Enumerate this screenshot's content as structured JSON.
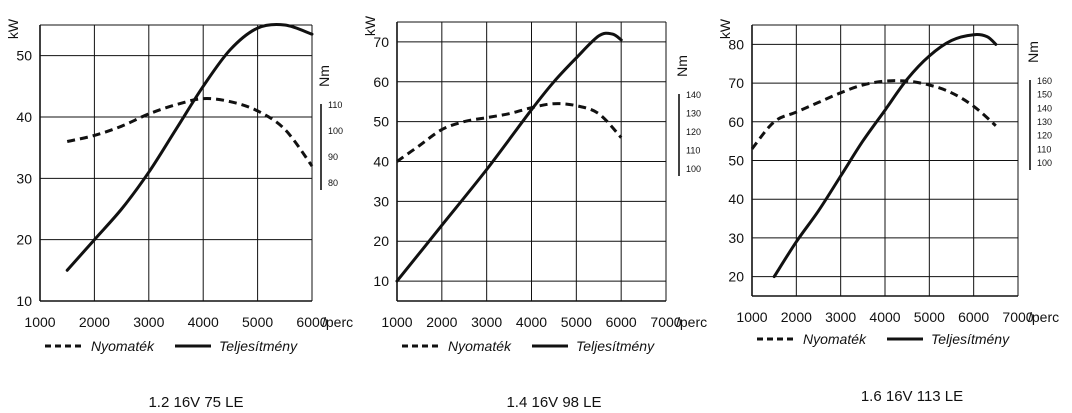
{
  "chart_data": [
    {
      "type": "line",
      "caption": "1.2 16V 75 LE",
      "x_unit": "/perc",
      "xlim": [
        1000,
        6000
      ],
      "x_ticks": [
        1000,
        2000,
        3000,
        4000,
        5000,
        6000
      ],
      "y_unit": "kW",
      "ylim": [
        10,
        55
      ],
      "y_ticks": [
        10,
        20,
        30,
        40,
        50
      ],
      "nm_unit": "Nm",
      "nm_ticks": [
        110,
        100,
        90,
        80
      ],
      "legend": [
        "Nyomaték",
        "Teljesítmény"
      ],
      "series": [
        {
          "name": "Teljesítmény",
          "axis": "kW",
          "style": "solid",
          "x": [
            1500,
            2000,
            2500,
            3000,
            3500,
            4000,
            4500,
            5000,
            5500,
            6000
          ],
          "y": [
            15,
            20,
            25,
            31,
            38,
            45,
            51,
            54.5,
            55,
            53.5
          ]
        },
        {
          "name": "Nyomaték",
          "axis": "kW",
          "style": "dashed",
          "x": [
            1500,
            2000,
            2500,
            3000,
            3500,
            4000,
            4500,
            5000,
            5500,
            6000
          ],
          "y": [
            36,
            37,
            38.5,
            40.5,
            42,
            43,
            42.5,
            41,
            38,
            32
          ]
        }
      ]
    },
    {
      "type": "line",
      "caption": "1.4 16V 98 LE",
      "x_unit": "/perc",
      "xlim": [
        1000,
        7000
      ],
      "x_ticks": [
        1000,
        2000,
        3000,
        4000,
        5000,
        6000,
        7000
      ],
      "y_unit": "kW",
      "ylim": [
        5,
        75
      ],
      "y_ticks": [
        10,
        20,
        30,
        40,
        50,
        60,
        70
      ],
      "nm_unit": "Nm",
      "nm_ticks": [
        140,
        130,
        120,
        110,
        100
      ],
      "legend": [
        "Nyomaték",
        "Teljesítmény"
      ],
      "series": [
        {
          "name": "Teljesítmény",
          "axis": "kW",
          "style": "solid",
          "x": [
            1000,
            2000,
            3000,
            4000,
            4500,
            5000,
            5500,
            5800,
            6000
          ],
          "y": [
            10,
            24,
            38,
            53,
            60,
            66,
            71.5,
            72,
            70.5
          ]
        },
        {
          "name": "Nyomaték",
          "axis": "kW",
          "style": "dashed",
          "x": [
            1000,
            1500,
            2000,
            2500,
            3000,
            3500,
            4000,
            4500,
            5000,
            5500,
            6000
          ],
          "y": [
            40,
            44,
            48,
            50,
            51,
            52,
            53.5,
            54.5,
            54,
            52,
            46
          ]
        }
      ]
    },
    {
      "type": "line",
      "caption": "1.6 16V 113 LE",
      "x_unit": "/perc",
      "xlim": [
        1000,
        7000
      ],
      "x_ticks": [
        1000,
        2000,
        3000,
        4000,
        5000,
        6000,
        7000
      ],
      "y_unit": "kW",
      "ylim": [
        15,
        85
      ],
      "y_ticks": [
        20,
        30,
        40,
        50,
        60,
        70,
        80
      ],
      "nm_unit": "Nm",
      "nm_ticks": [
        160,
        150,
        140,
        130,
        120,
        110,
        100
      ],
      "legend": [
        "Nyomaték",
        "Teljesítmény"
      ],
      "series": [
        {
          "name": "Teljesítmény",
          "axis": "kW",
          "style": "solid",
          "x": [
            1500,
            2000,
            2500,
            3000,
            3500,
            4000,
            4500,
            5000,
            5500,
            6000,
            6300,
            6500
          ],
          "y": [
            20,
            29,
            37,
            46,
            55,
            63,
            71,
            77,
            81,
            82.5,
            82,
            80
          ]
        },
        {
          "name": "Nyomaték",
          "axis": "kW",
          "style": "dashed",
          "x": [
            1000,
            1500,
            2000,
            2500,
            3000,
            3500,
            4000,
            4500,
            5000,
            5500,
            6000,
            6500
          ],
          "y": [
            53,
            60,
            62.5,
            65,
            67.5,
            69.5,
            70.5,
            70.5,
            69.5,
            67.5,
            64,
            59
          ]
        }
      ]
    }
  ]
}
